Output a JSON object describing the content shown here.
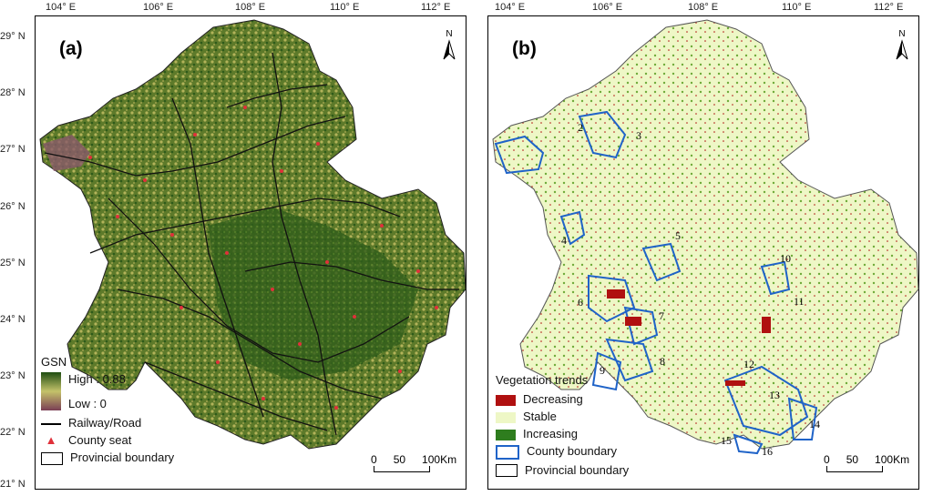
{
  "longitude_labels": [
    "104° E",
    "106° E",
    "108° E",
    "110° E",
    "112° E"
  ],
  "latitude_labels": [
    "29° N",
    "28° N",
    "27° N",
    "26° N",
    "25° N",
    "24° N",
    "23° N",
    "22° N",
    "21° N"
  ],
  "panel_a": {
    "label": "(a)",
    "north": "N",
    "legend": {
      "title": "GSN",
      "high": "High : 0.88",
      "low": "Low : 0",
      "railway": "Railway/Road",
      "county": "County seat",
      "provincial": "Provincial boundary"
    },
    "scale": {
      "t0": "0",
      "t50": "50",
      "t100": "100",
      "unit": "Km"
    },
    "colors": {
      "high": "#1f4d12",
      "mid": "#c4c26a",
      "low": "#7a3e55"
    }
  },
  "panel_b": {
    "label": "(b)",
    "north": "N",
    "legend": {
      "title": "Vegetation trends",
      "decreasing": "Decreasing",
      "stable": "Stable",
      "increasing": "Increasing",
      "county_boundary": "County boundary",
      "provincial": "Provincial boundary"
    },
    "county_numbers": [
      "2",
      "3",
      "4",
      "5",
      "6",
      "7",
      "8",
      "9",
      "10",
      "11",
      "12",
      "13",
      "14",
      "15",
      "16"
    ],
    "scale": {
      "t0": "0",
      "t50": "50",
      "t100": "100",
      "unit": "Km"
    },
    "colors": {
      "decreasing": "#b01010",
      "stable": "#eef7c6",
      "increasing": "#2e7d1e",
      "county": "#1f63c8"
    }
  }
}
